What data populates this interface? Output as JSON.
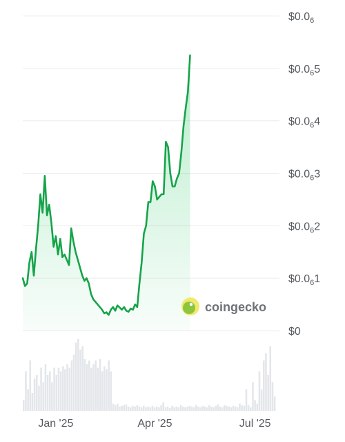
{
  "chart_data": {
    "type": "area",
    "y_tick_labels": [
      {
        "prefix": "$0.0",
        "sub": "6",
        "suffix": "",
        "value": 6
      },
      {
        "prefix": "$0.0",
        "sub": "6",
        "suffix": "5",
        "value": 5
      },
      {
        "prefix": "$0.0",
        "sub": "6",
        "suffix": "4",
        "value": 4
      },
      {
        "prefix": "$0.0",
        "sub": "6",
        "suffix": "3",
        "value": 3
      },
      {
        "prefix": "$0.0",
        "sub": "6",
        "suffix": "2",
        "value": 2
      },
      {
        "prefix": "$0.0",
        "sub": "6",
        "suffix": "1",
        "value": 1
      },
      {
        "prefix": "$0",
        "sub": "",
        "suffix": "",
        "value": 0
      }
    ],
    "ylim": [
      0,
      6
    ],
    "x_tick_labels": [
      {
        "label": "Jan '25",
        "x": 30
      },
      {
        "label": "Apr '25",
        "x": 120
      },
      {
        "label": "Jul '25",
        "x": 211
      }
    ],
    "xlim": [
      0,
      230
    ],
    "x": [
      0,
      2,
      4,
      6,
      8,
      10,
      12,
      14,
      16,
      18,
      20,
      22,
      24,
      26,
      28,
      30,
      32,
      34,
      36,
      38,
      40,
      42,
      44,
      46,
      48,
      50,
      52,
      54,
      56,
      58,
      60,
      62,
      64,
      66,
      68,
      70,
      72,
      74,
      76,
      78,
      80,
      82,
      84,
      86,
      88,
      90,
      92,
      94,
      96,
      98,
      100,
      102,
      104,
      106,
      108,
      110,
      112,
      114,
      116,
      118,
      120,
      122,
      124,
      126,
      128,
      130,
      132,
      134,
      136,
      138,
      140,
      142,
      144,
      146,
      148,
      150,
      152,
      154,
      156,
      158,
      160,
      162,
      164,
      166,
      168,
      170,
      172,
      174,
      176,
      178,
      180,
      182,
      184,
      186,
      188,
      190,
      192,
      194,
      196,
      198,
      200,
      202,
      204,
      206,
      208,
      210,
      212,
      214,
      216,
      218,
      220,
      222,
      224,
      226,
      228,
      230
    ],
    "price": [
      1.0,
      0.85,
      0.9,
      1.3,
      1.5,
      1.05,
      1.55,
      2.0,
      2.6,
      2.25,
      2.95,
      2.2,
      2.4,
      2.05,
      1.6,
      1.8,
      1.45,
      1.75,
      1.4,
      1.45,
      1.35,
      1.25,
      1.95,
      1.7,
      1.5,
      1.35,
      1.2,
      1.05,
      0.95,
      1.0,
      0.9,
      0.7,
      0.6,
      0.55,
      0.5,
      0.45,
      0.4,
      0.33,
      0.35,
      0.3,
      0.4,
      0.45,
      0.38,
      0.48,
      0.44,
      0.4,
      0.45,
      0.38,
      0.36,
      0.42,
      0.4,
      0.5,
      0.45,
      0.9,
      1.3,
      1.85,
      2.0,
      2.45,
      2.45,
      2.85,
      2.75,
      2.5,
      2.55,
      2.6,
      2.6,
      3.6,
      3.5,
      3.0,
      2.75,
      2.75,
      2.9,
      3.0,
      3.4,
      3.9,
      4.25,
      4.55,
      5.25
    ],
    "volume": [
      0.15,
      0.55,
      0.3,
      0.7,
      0.25,
      0.45,
      0.5,
      0.35,
      0.6,
      0.4,
      0.65,
      0.5,
      0.55,
      0.4,
      0.6,
      0.5,
      0.6,
      0.55,
      0.62,
      0.58,
      0.65,
      0.6,
      0.7,
      0.78,
      0.95,
      1.0,
      0.85,
      0.9,
      0.72,
      0.65,
      0.7,
      0.6,
      0.65,
      0.7,
      0.6,
      0.72,
      0.55,
      0.62,
      0.58,
      0.7,
      0.55,
      0.1,
      0.08,
      0.1,
      0.06,
      0.07,
      0.08,
      0.09,
      0.06,
      0.05,
      0.07,
      0.06,
      0.08,
      0.06,
      0.05,
      0.07,
      0.05,
      0.06,
      0.05,
      0.07,
      0.05,
      0.06,
      0.05,
      0.08,
      0.12,
      0.05,
      0.06,
      0.04,
      0.07,
      0.05,
      0.06,
      0.05,
      0.08,
      0.06,
      0.05,
      0.06,
      0.07,
      0.06,
      0.05,
      0.08,
      0.06,
      0.05,
      0.07,
      0.06,
      0.05,
      0.08,
      0.06,
      0.05,
      0.07,
      0.09,
      0.06,
      0.05,
      0.08,
      0.07,
      0.06,
      0.05,
      0.07,
      0.06,
      0.05,
      0.1,
      0.08,
      0.07,
      0.3,
      0.08,
      0.05,
      0.4,
      0.15,
      0.1,
      0.55,
      0.3,
      0.7,
      0.8,
      0.5,
      0.9,
      0.4,
      0.2
    ],
    "grid": "horizontal",
    "colors": {
      "line": "#16a34a",
      "fill": "#22c55e",
      "grid": "#ececec",
      "volume": "#e3e6ea",
      "axis_text": "#555a60",
      "brand_text": "#6f7378",
      "logo_fill": "#8cc63f",
      "logo_ring": "#f2e86d"
    }
  },
  "watermark": {
    "text": "coingecko",
    "icon": "gecko-logo-icon"
  }
}
